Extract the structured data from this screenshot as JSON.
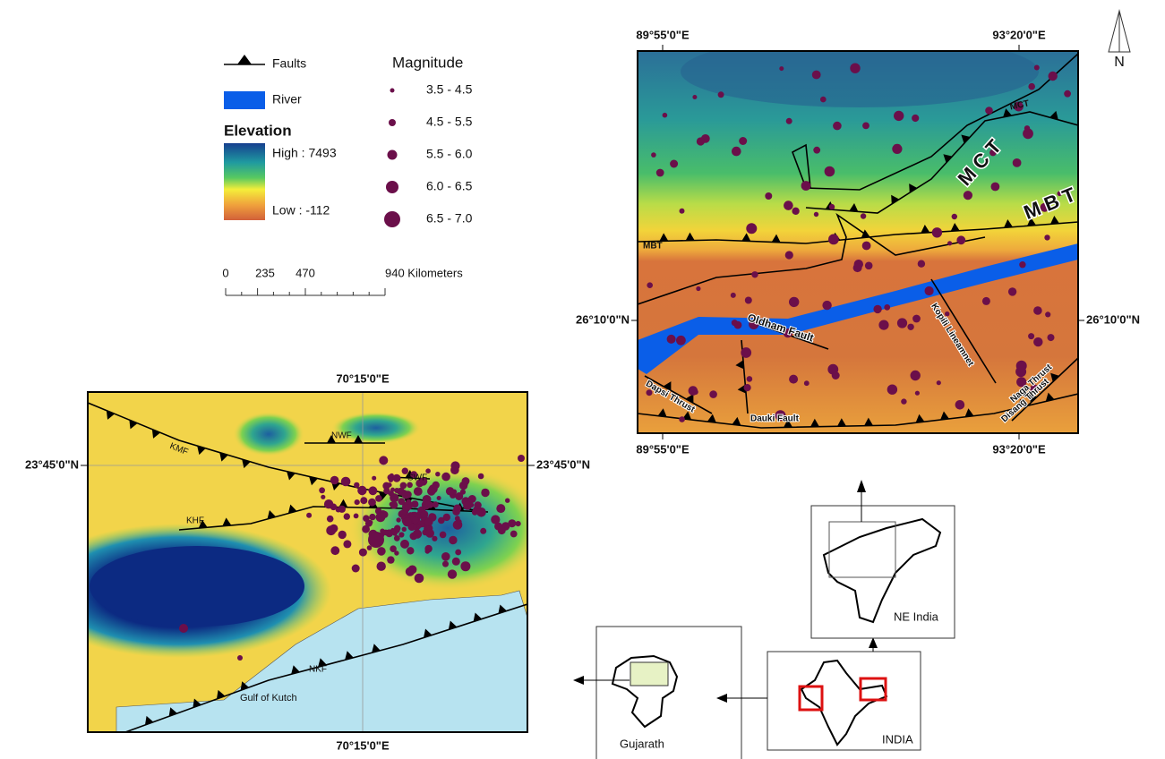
{
  "legend": {
    "faults": "Faults",
    "river": "River",
    "elevation_title": "Elevation",
    "high": "High : 7493",
    "low": "Low : -112",
    "magnitude_title": "Magnitude",
    "magnitude_classes": [
      "3.5 - 4.5",
      "4.5 - 5.5",
      "5.5 - 6.0",
      "6.0 - 6.5",
      "6.5 - 7.0"
    ],
    "scale_bar": {
      "ticks": [
        "0",
        "235",
        "470"
      ],
      "end": "940 Kilometers"
    }
  },
  "north_arrow": "N",
  "ne_map": {
    "lon_top": [
      "89°55'0\"E",
      "93°20'0\"E"
    ],
    "lon_bottom": [
      "89°55'0\"E",
      "93°20'0\"E"
    ],
    "lat_left": "26°10'0\"N",
    "lat_right": "26°10'0\"N",
    "labels": {
      "mct_small": "MCT",
      "mct": "M C T",
      "mbt": "M B T",
      "mbt_small": "MBT",
      "oldham": "Oldham Fault",
      "kopili": "Kopili Lineamnet",
      "dapsi": "Dapsi Thrust",
      "dauki": "Dauki Fault",
      "naga": "Naga Thrust",
      "disang": "Disang Thrust"
    }
  },
  "kutch_map": {
    "lon_top": "70°15'0\"E",
    "lon_bottom": "70°15'0\"E",
    "lat_left": "23°45'0\"N",
    "lat_right": "23°45'0\"N",
    "labels": {
      "kmf": "KMF",
      "nwf": "NWF",
      "swf": "SWF",
      "khf": "KHF",
      "nkf": "NKF",
      "gulf": "Gulf of Kutch"
    }
  },
  "insets": {
    "ne_india": "NE India",
    "gujarath": "Gujarath",
    "india": "INDIA"
  }
}
